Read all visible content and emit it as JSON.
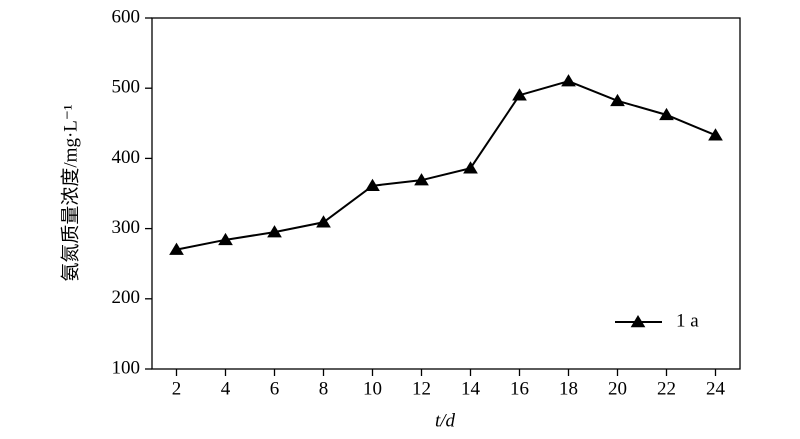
{
  "chart_data": {
    "type": "line",
    "x": [
      2,
      4,
      6,
      8,
      10,
      12,
      14,
      16,
      18,
      20,
      22,
      24
    ],
    "series": [
      {
        "name": "1 a",
        "color": "#000000",
        "values": [
          270,
          284,
          295,
          309,
          361,
          369,
          386,
          490,
          510,
          482,
          462,
          433
        ]
      }
    ],
    "xlim": [
      1,
      25
    ],
    "xticks": [
      2,
      4,
      6,
      8,
      10,
      12,
      14,
      16,
      18,
      20,
      22,
      24
    ],
    "ylim": [
      100,
      600
    ],
    "yticks": [
      100,
      200,
      300,
      400,
      500,
      600
    ],
    "xlabel": "t/d",
    "ylabel": "氨氮质量浓度/mg·L⁻¹",
    "legend": "lower right",
    "grid": false
  }
}
